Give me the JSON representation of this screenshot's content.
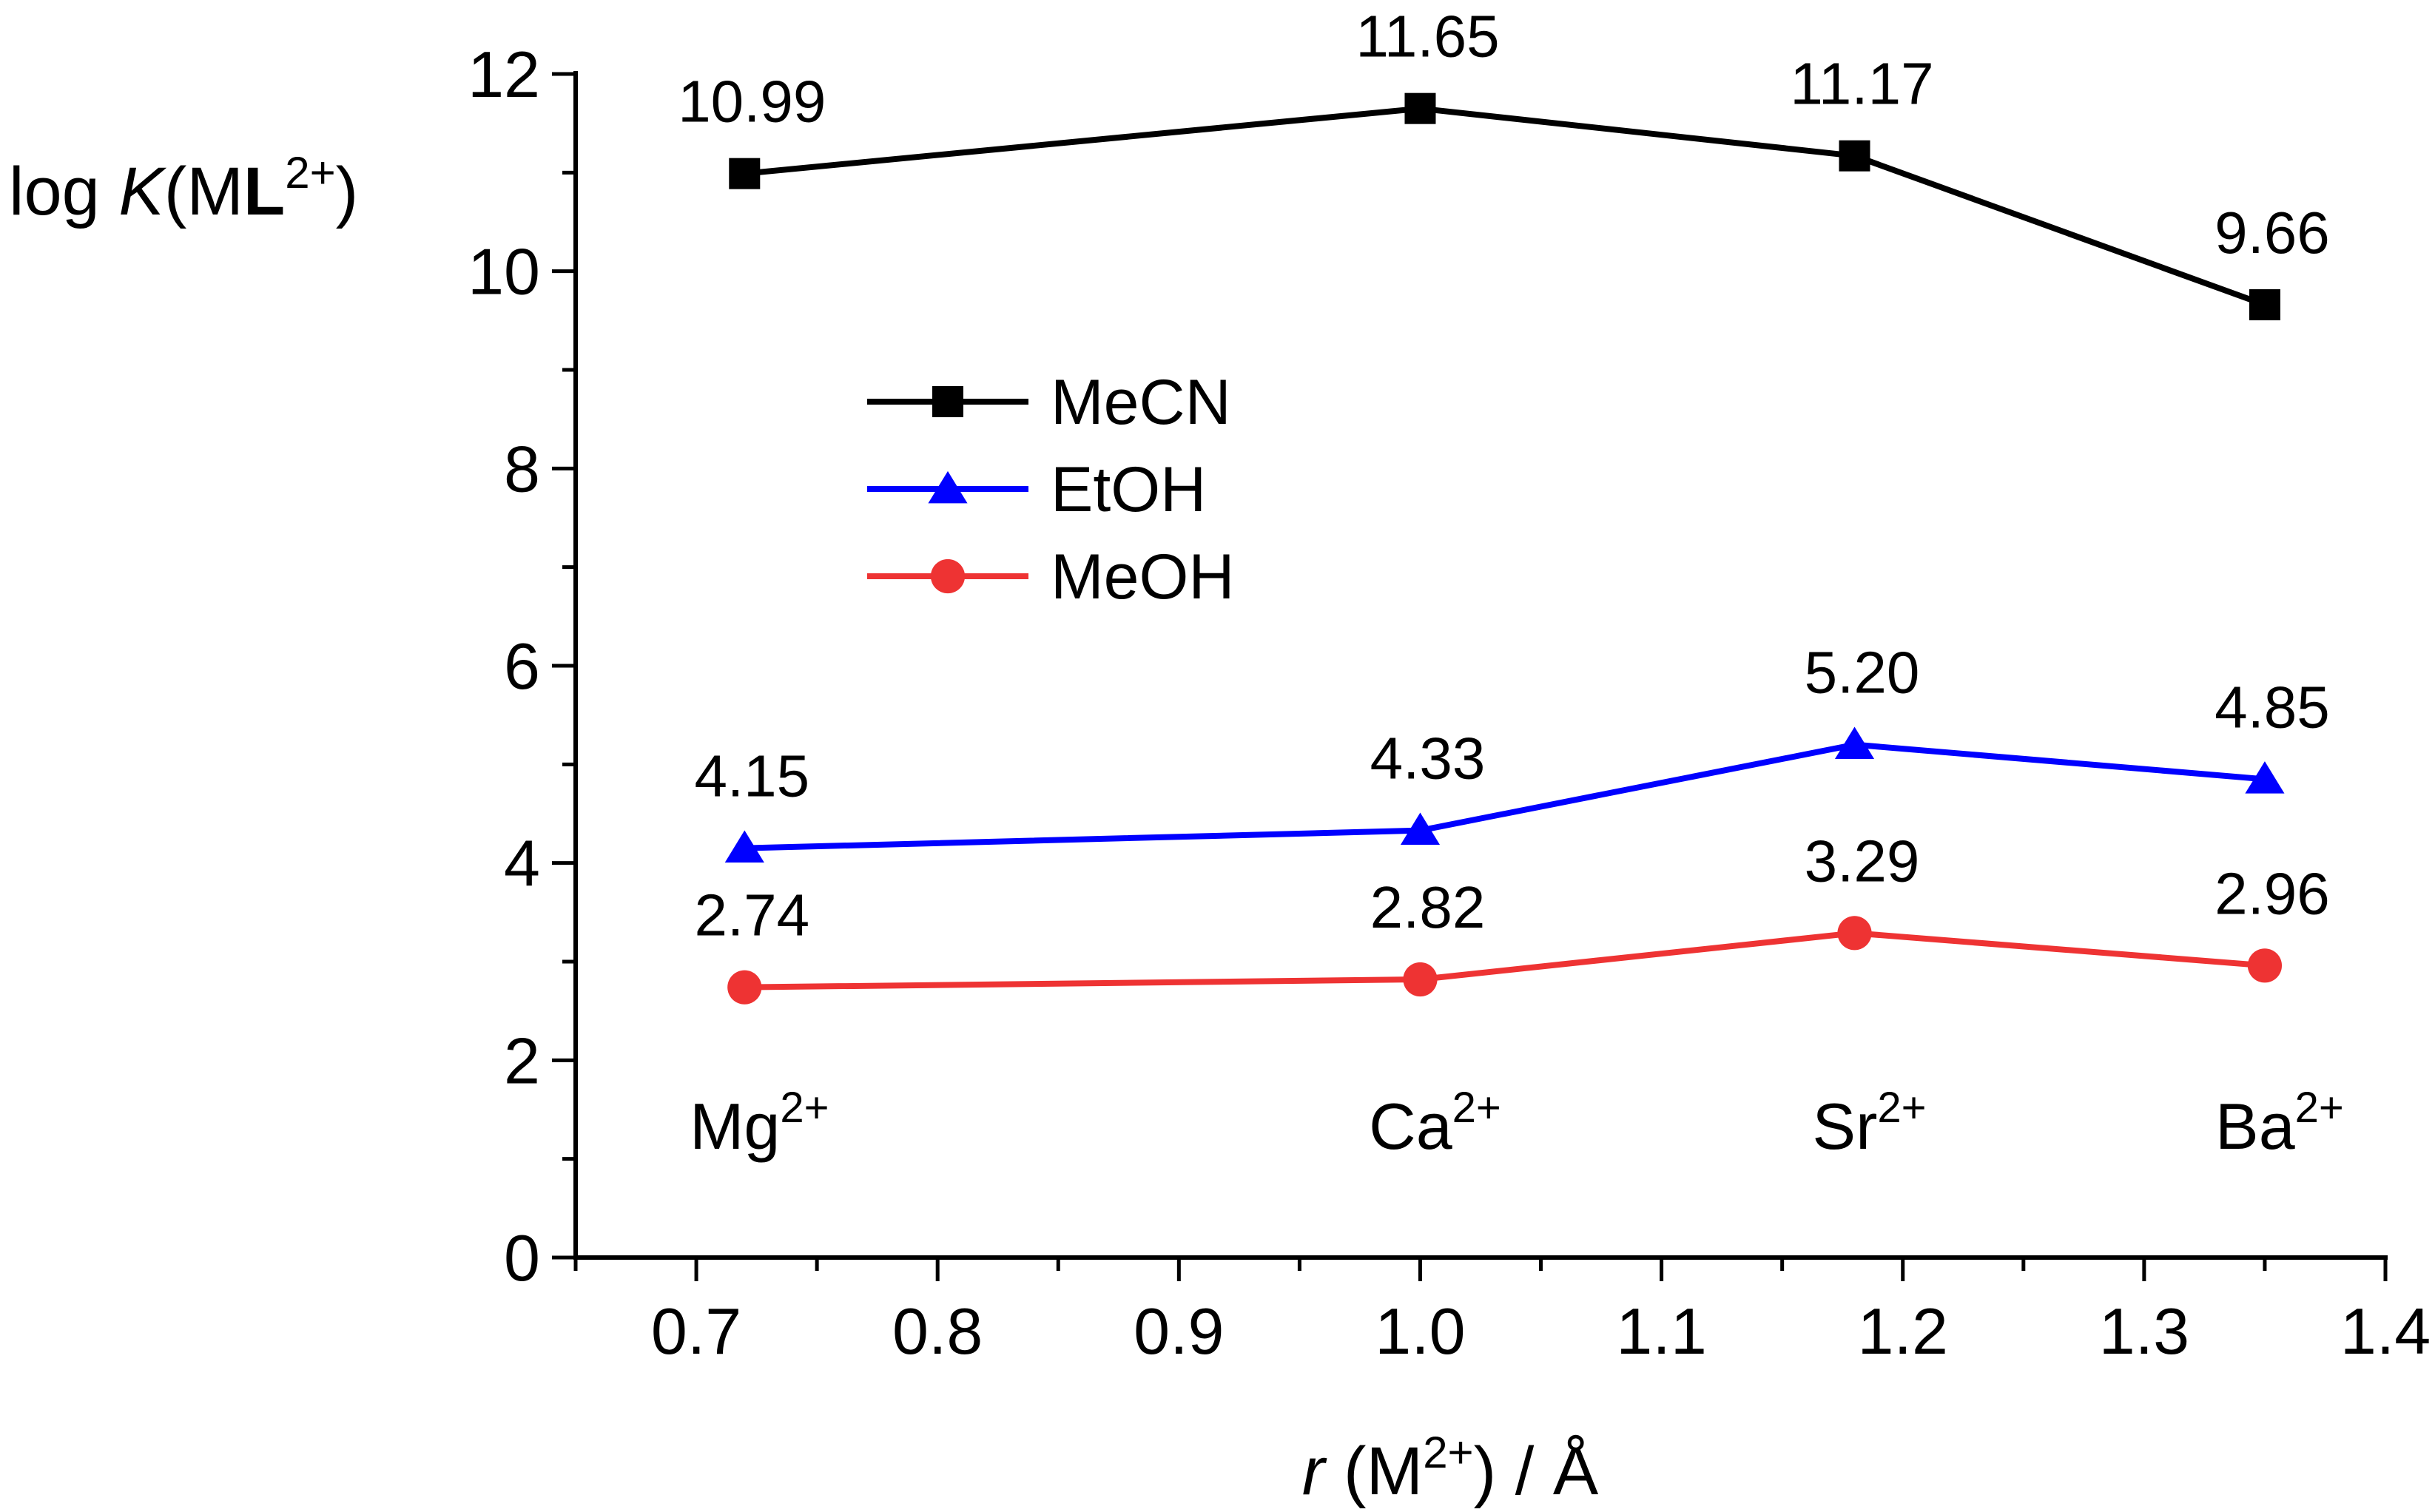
{
  "chart_data": {
    "type": "line",
    "title": "",
    "xlabel": {
      "var": "r",
      "open": " (M",
      "sup": "2+",
      "close": ") / Å"
    },
    "ylabel": {
      "pre": "log ",
      "var": "K",
      "open": "(M",
      "bold": "L",
      "sup": "2+",
      "close": ")"
    },
    "xlim": [
      0.65,
      1.4
    ],
    "ylim": [
      0,
      12
    ],
    "xticks": [
      0.7,
      0.8,
      0.9,
      1.0,
      1.1,
      1.2,
      1.3,
      1.4
    ],
    "xtick_labels": [
      "0.7",
      "0.8",
      "0.9",
      "1.0",
      "1.1",
      "1.2",
      "1.3",
      "1.4"
    ],
    "yticks": [
      0,
      2,
      4,
      6,
      8,
      10,
      12
    ],
    "ytick_labels": [
      "0",
      "2",
      "4",
      "6",
      "8",
      "10",
      "12"
    ],
    "x": [
      0.72,
      1.0,
      1.18,
      1.35
    ],
    "series": [
      {
        "name": "MeCN",
        "color": "#000000",
        "marker": "square",
        "values": [
          10.99,
          11.65,
          11.17,
          9.66
        ],
        "labels": [
          "10.99",
          "11.65",
          "11.17",
          "9.66"
        ]
      },
      {
        "name": "EtOH",
        "color": "#0000ff",
        "marker": "triangle",
        "values": [
          4.15,
          4.33,
          5.2,
          4.85
        ],
        "labels": [
          "4.15",
          "4.33",
          "5.20",
          "4.85"
        ]
      },
      {
        "name": "MeOH",
        "color": "#ee3333",
        "marker": "circle",
        "values": [
          2.74,
          2.82,
          3.29,
          2.96
        ],
        "labels": [
          "2.74",
          "2.82",
          "3.29",
          "2.96"
        ]
      }
    ],
    "annotations": [
      {
        "x": 0.72,
        "base": "Mg",
        "sup": "2+"
      },
      {
        "x": 1.0,
        "base": "Ca",
        "sup": "2+"
      },
      {
        "x": 1.18,
        "base": "Sr",
        "sup": "2+"
      },
      {
        "x": 1.35,
        "base": "Ba",
        "sup": "2+"
      }
    ],
    "legend_position": "upper-left-inside",
    "grid": false
  }
}
